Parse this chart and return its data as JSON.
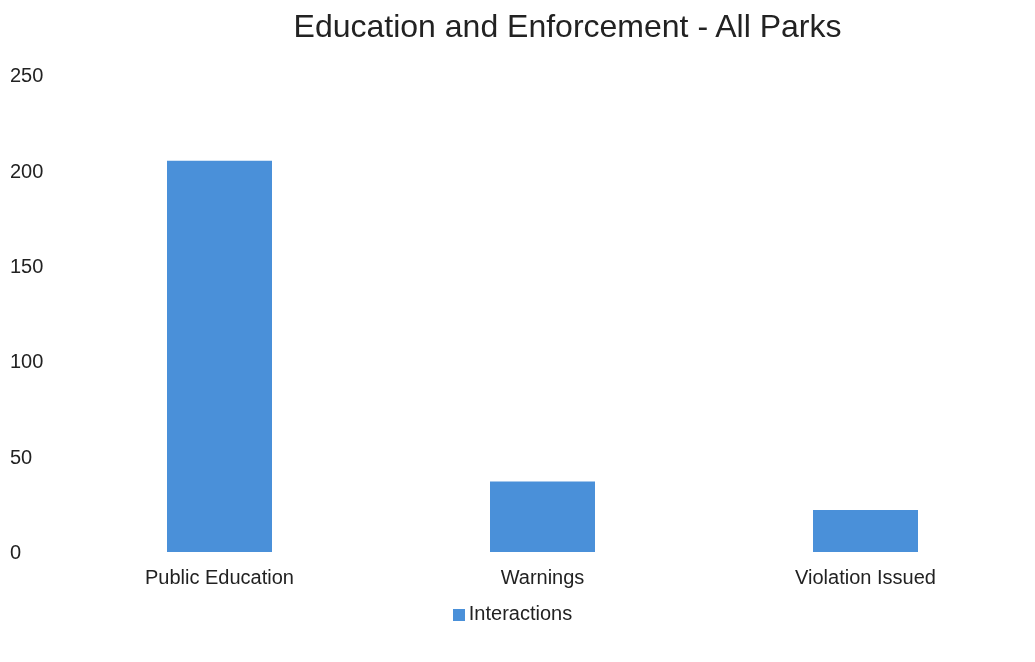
{
  "chart_data": {
    "type": "bar",
    "title": "Education and Enforcement - All Parks",
    "categories": [
      "Public Education",
      "Warnings",
      "Violation Issued"
    ],
    "series": [
      {
        "name": "Interactions",
        "color": "#4a90d9",
        "values": [
          205,
          37,
          22
        ]
      }
    ],
    "ylim": [
      0,
      250
    ],
    "yticks": [
      0,
      50,
      100,
      150,
      200,
      250
    ],
    "grid": false,
    "legend": "bottom"
  }
}
